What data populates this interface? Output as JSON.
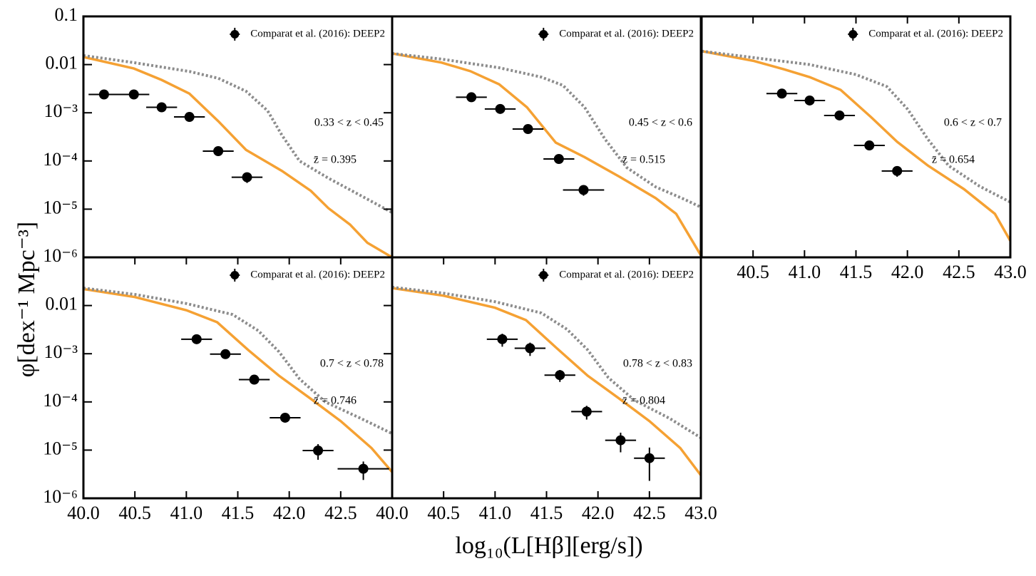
{
  "ylabel": "φ[dex⁻¹ Mpc⁻³]",
  "xlabel": "log₁₀(L[Hβ][erg/s])",
  "chart_data": [
    {
      "type": "scatter",
      "ylog": true,
      "xlim": [
        40,
        43
      ],
      "ylim": [
        1e-06,
        0.1
      ],
      "legend": "upper right",
      "yticks": [
        0.1,
        0.01,
        {
          "value": 0.001,
          "label": "10⁻³"
        },
        {
          "value": 0.0001,
          "label": "10⁻⁴"
        },
        {
          "value": 1e-05,
          "label": "10⁻⁵"
        },
        {
          "value": 1e-06,
          "label": "10⁻⁶"
        }
      ],
      "annotations": [
        "0.33 < z < 0.45",
        "z̄ = 0.395"
      ],
      "series": [
        {
          "color": "#f5a133",
          "style": "solid",
          "x": [
            40,
            40.49,
            40.76,
            41.03,
            41.31,
            41.58,
            41.93,
            42.21,
            42.38,
            42.59,
            42.76,
            43
          ],
          "values": [
            0.0144,
            0.0083,
            0.0048,
            0.0025,
            0.00067,
            0.00017,
            6.2e-05,
            2.4e-05,
            1.05e-05,
            4.8e-06,
            2e-06,
            1e-06
          ]
        },
        {
          "color": "#8c8c8c",
          "style": "dotted",
          "x": [
            40,
            40.49,
            41.03,
            41.31,
            41.58,
            41.79,
            41.93,
            42.1,
            42.38,
            42.66,
            43
          ],
          "values": [
            0.0154,
            0.011,
            0.0072,
            0.0052,
            0.0028,
            0.0011,
            0.00034,
            0.0001,
            4.4e-05,
            2.1e-05,
            8.5e-06
          ]
        },
        {
          "name": "Comparat et al. (2016): DEEP2",
          "color": "#000000",
          "x": [
            40.2,
            40.49,
            40.76,
            41.03,
            41.31,
            41.59
          ],
          "values": [
            0.0024,
            0.0024,
            0.0013,
            0.00082,
            0.00016,
            4.6e-05
          ],
          "xerr": [
            0.15,
            0.15,
            0.15,
            0.15,
            0.15,
            0.15
          ],
          "yerr": [
            0.0003,
            0.0003,
            0.00018,
            0.0001,
            3e-05,
            1.1e-05
          ]
        }
      ]
    },
    {
      "type": "scatter",
      "ylog": true,
      "xlim": [
        40,
        43
      ],
      "ylim": [
        1e-06,
        0.1
      ],
      "legend": "upper right",
      "annotations": [
        "0.45 < z < 0.6",
        "z̄ = 0.515"
      ],
      "series": [
        {
          "color": "#f5a133",
          "style": "solid",
          "x": [
            40,
            40.48,
            40.76,
            41.04,
            41.31,
            41.59,
            41.87,
            42.21,
            42.56,
            42.76,
            43
          ],
          "values": [
            0.017,
            0.011,
            0.0073,
            0.0039,
            0.0013,
            0.00024,
            0.00012,
            4.7e-05,
            1.7e-05,
            8e-06,
            1.1e-06
          ]
        },
        {
          "color": "#8c8c8c",
          "style": "dotted",
          "x": [
            40,
            40.48,
            41.04,
            41.45,
            41.66,
            41.87,
            42.07,
            42.28,
            42.56,
            42.84,
            43
          ],
          "values": [
            0.017,
            0.013,
            0.0086,
            0.0055,
            0.0037,
            0.0013,
            0.00028,
            7.3e-05,
            2.9e-05,
            1.6e-05,
            1.1e-05
          ]
        },
        {
          "name": "Comparat et al. (2016): DEEP2",
          "color": "#000000",
          "x": [
            40.77,
            41.05,
            41.32,
            41.62,
            41.86
          ],
          "values": [
            0.0021,
            0.0012,
            0.00046,
            0.00011,
            2.5e-05
          ],
          "xerr": [
            0.15,
            0.15,
            0.15,
            0.15,
            0.2
          ],
          "yerr": [
            0.0002,
            0.00012,
            5e-05,
            1.5e-05,
            6e-06
          ]
        }
      ]
    },
    {
      "type": "scatter",
      "ylog": true,
      "xlim": [
        40,
        43
      ],
      "ylim": [
        1e-06,
        0.1
      ],
      "legend": "upper right",
      "xticks": [
        40.5,
        {
          "value": 41,
          "label": "41.0"
        },
        41.5,
        {
          "value": 42,
          "label": "42.0"
        },
        42.5,
        {
          "value": 43,
          "label": "43.0"
        }
      ],
      "annotations": [
        "0.6 < z < 0.7",
        "z̄ = 0.654"
      ],
      "series": [
        {
          "color": "#f5a133",
          "style": "solid",
          "x": [
            40,
            40.5,
            40.8,
            41.05,
            41.35,
            41.65,
            41.9,
            42.2,
            42.55,
            42.85,
            43
          ],
          "values": [
            0.019,
            0.012,
            0.008,
            0.0055,
            0.003,
            0.0008,
            0.00025,
            8e-05,
            2.6e-05,
            8e-06,
            2.2e-06
          ]
        },
        {
          "color": "#8c8c8c",
          "style": "dotted",
          "x": [
            40,
            40.5,
            41.05,
            41.5,
            41.8,
            42,
            42.2,
            42.4,
            42.7,
            43
          ],
          "values": [
            0.019,
            0.014,
            0.01,
            0.0062,
            0.0035,
            0.0012,
            0.00028,
            8e-05,
            3e-05,
            1.4e-05
          ]
        },
        {
          "name": "Comparat et al. (2016): DEEP2",
          "color": "#000000",
          "x": [
            40.78,
            41.05,
            41.34,
            41.63,
            41.9
          ],
          "values": [
            0.0025,
            0.0018,
            0.00088,
            0.00021,
            6.2e-05
          ],
          "xerr": [
            0.15,
            0.15,
            0.15,
            0.15,
            0.15
          ],
          "yerr": [
            0.0002,
            0.00015,
            8e-05,
            3e-05,
            1.5e-05
          ]
        }
      ]
    },
    {
      "type": "scatter",
      "ylog": true,
      "xlim": [
        40,
        43
      ],
      "ylim": [
        1e-06,
        0.1
      ],
      "legend": "upper right",
      "xticks": [
        {
          "value": 40,
          "label": "40.0"
        },
        40.5,
        {
          "value": 41,
          "label": "41.0"
        },
        41.5,
        {
          "value": 42,
          "label": "42.0"
        },
        42.5
      ],
      "yticks": [
        0.01,
        {
          "value": 0.001,
          "label": "10⁻³"
        },
        {
          "value": 0.0001,
          "label": "10⁻⁴"
        },
        {
          "value": 1e-05,
          "label": "10⁻⁵"
        },
        {
          "value": 1e-06,
          "label": "10⁻⁶"
        }
      ],
      "annotations": [
        "0.7 < z < 0.78",
        "z̄ = 0.746"
      ],
      "series": [
        {
          "color": "#f5a133",
          "style": "solid",
          "x": [
            40,
            40.5,
            41,
            41.3,
            41.6,
            41.9,
            42.2,
            42.5,
            42.8,
            43
          ],
          "values": [
            0.022,
            0.015,
            0.008,
            0.0045,
            0.0012,
            0.00035,
            0.00012,
            4e-05,
            1.1e-05,
            3.5e-06
          ]
        },
        {
          "color": "#8c8c8c",
          "style": "dotted",
          "x": [
            40,
            40.5,
            41,
            41.45,
            41.7,
            41.9,
            42.1,
            42.35,
            42.7,
            43
          ],
          "values": [
            0.023,
            0.017,
            0.011,
            0.0065,
            0.003,
            0.0011,
            0.0003,
            0.0001,
            4.5e-05,
            2.2e-05
          ]
        },
        {
          "name": "Comparat et al. (2016): DEEP2",
          "color": "#000000",
          "x": [
            41.1,
            41.38,
            41.66,
            41.96,
            42.28,
            42.72
          ],
          "values": [
            0.002,
            0.00098,
            0.00029,
            4.7e-05,
            9.8e-06,
            4.1e-06
          ],
          "xerr": [
            0.15,
            0.15,
            0.15,
            0.15,
            0.15,
            0.25
          ],
          "yerr": [
            0.0002,
            0.0001,
            3e-05,
            8e-06,
            3.5e-06,
            1.7e-06
          ]
        }
      ]
    },
    {
      "type": "scatter",
      "ylog": true,
      "xlim": [
        40,
        43
      ],
      "ylim": [
        1e-06,
        0.1
      ],
      "legend": "upper right",
      "xticks": [
        {
          "value": 40,
          "label": "40.0"
        },
        40.5,
        {
          "value": 41,
          "label": "41.0"
        },
        41.5,
        {
          "value": 42,
          "label": "42.0"
        },
        42.5,
        {
          "value": 43,
          "label": "43.0"
        }
      ],
      "annotations": [
        "0.78 < z < 0.83",
        "z̄ = 0.804"
      ],
      "series": [
        {
          "color": "#f5a133",
          "style": "solid",
          "x": [
            40,
            40.5,
            41,
            41.3,
            41.6,
            41.9,
            42.2,
            42.5,
            42.8,
            43
          ],
          "values": [
            0.023,
            0.016,
            0.009,
            0.005,
            0.0013,
            0.00035,
            0.00012,
            4e-05,
            1.1e-05,
            3e-06
          ]
        },
        {
          "color": "#8c8c8c",
          "style": "dotted",
          "x": [
            40,
            40.5,
            41,
            41.45,
            41.7,
            41.9,
            42.1,
            42.35,
            42.7,
            43
          ],
          "values": [
            0.024,
            0.018,
            0.012,
            0.007,
            0.0032,
            0.0012,
            0.00032,
            0.00011,
            4.5e-05,
            1.8e-05
          ]
        },
        {
          "name": "Comparat et al. (2016): DEEP2",
          "color": "#000000",
          "x": [
            41.07,
            41.34,
            41.63,
            41.89,
            42.22,
            42.5
          ],
          "values": [
            0.002,
            0.0013,
            0.00036,
            6.3e-05,
            1.6e-05,
            6.8e-06
          ],
          "xerr": [
            0.15,
            0.15,
            0.15,
            0.15,
            0.15,
            0.15
          ],
          "yerr": [
            0.0006,
            0.0004,
            0.0001,
            2e-05,
            7e-06,
            4.5e-06
          ]
        }
      ]
    }
  ]
}
